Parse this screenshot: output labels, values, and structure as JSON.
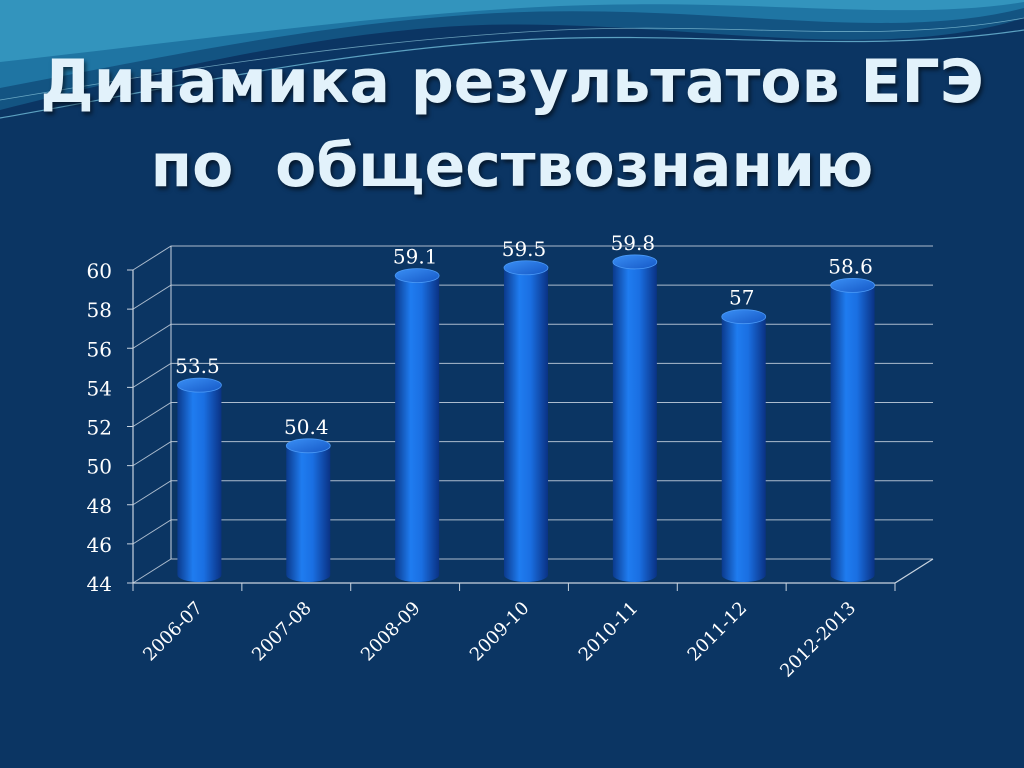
{
  "slide": {
    "title_line1": "Динамика результатов ЕГЭ",
    "title_line2": "по  обществознанию"
  },
  "colors": {
    "background": "#0b3563",
    "bar": "#1565d8",
    "grid": "#c9d4e0",
    "text": "#ffffff",
    "title": "#e2f2fb"
  },
  "chart_data": {
    "type": "bar",
    "title": "",
    "xlabel": "",
    "ylabel": "",
    "categories": [
      "2006-07",
      "2007-08",
      "2008-09",
      "2009-10",
      "2010-11",
      "2011-12",
      "2012-2013"
    ],
    "values": [
      53.5,
      50.4,
      59.1,
      59.5,
      59.8,
      57,
      58.6
    ],
    "data_labels": [
      "53.5",
      "50.4",
      "59.1",
      "59.5",
      "59.8",
      "57",
      "58.6"
    ],
    "ylim": [
      44,
      60
    ],
    "yticks": [
      "44",
      "46",
      "48",
      "50",
      "52",
      "54",
      "56",
      "58",
      "60"
    ],
    "grid": true,
    "legend": "none",
    "style": "3d-cylinder"
  }
}
